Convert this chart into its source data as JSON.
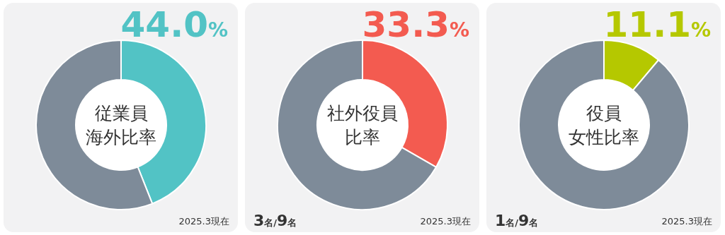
{
  "chart_data": [
    {
      "type": "donut",
      "title": "従業員",
      "subtitle": "海外比率",
      "categories": [
        null,
        null
      ],
      "values": [
        44.0,
        56.0
      ],
      "colors": [
        "#52c3c5",
        "#7e8b99"
      ],
      "value_labels": [
        "44.0%",
        null
      ],
      "annotations": [
        "2025.3現在"
      ]
    },
    {
      "type": "donut",
      "title": "社外役員",
      "subtitle": "比率",
      "categories": [
        null,
        null
      ],
      "values": [
        33.3,
        66.7
      ],
      "colors": [
        "#f35b50",
        "#7e8b99"
      ],
      "value_labels": [
        "33.3%",
        null
      ],
      "annotations": [
        "3名/9名",
        "2025.3現在"
      ]
    },
    {
      "type": "donut",
      "title": "役員",
      "subtitle": "女性比率",
      "categories": [
        null,
        null
      ],
      "values": [
        11.1,
        88.9
      ],
      "colors": [
        "#b5c800",
        "#7e8b99"
      ],
      "value_labels": [
        "11.1%",
        null
      ],
      "annotations": [
        "1名/9名",
        "2025.3現在"
      ]
    }
  ]
}
